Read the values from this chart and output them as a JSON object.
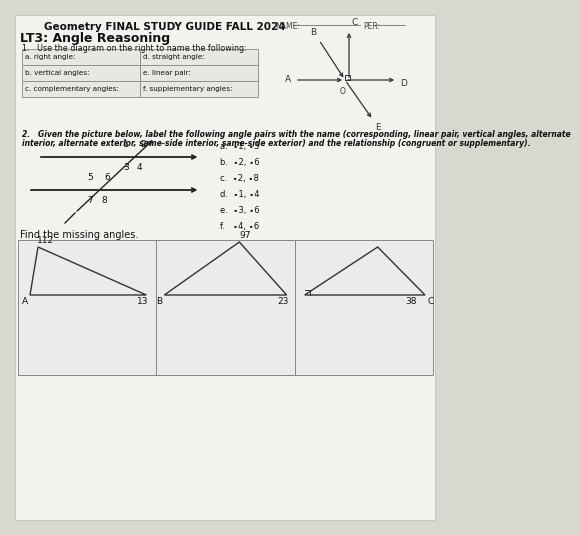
{
  "title": "Geometry FINAL STUDY GUIDE FALL 2024",
  "name_label": "NAME: ___________________",
  "per_label": "PER: _______",
  "section": "LT3: Angle Reasoning",
  "q1_header": "1.   Use the diagram on the right to name the following:",
  "table_rows": [
    [
      "a. right angle:",
      "d. straight angle:"
    ],
    [
      "b. vertical angles:",
      "e. linear pair:"
    ],
    [
      "c. complementary angles:",
      "f. supplementary angles:"
    ]
  ],
  "q2_header": "2.   Given the picture below, label the following angle pairs with the name (corresponding, linear pair, vertical angles, alternate",
  "q2_header2": "interior, alternate exterior, same-side interior, same-side exterior) and the relationship (congruent or supplementary).",
  "angle_pairs": [
    "a.  ∙1, ∙3",
    "b.  ∙2, ∙6",
    "c.  ∙2, ∙8",
    "d.  ∙1, ∙4",
    "e.  ∙3, ∙6",
    "f.   ∙4, ∙6"
  ],
  "find_missing": "Find the missing angles.",
  "bg_color": "#d8d8d0",
  "page_bg": "#f2f2ee",
  "table_bg": "#e8e8e2",
  "box_bg": "#ebebea",
  "text_color": "#111111",
  "triangle1_angle_top": "112",
  "triangle1_angle_br": "13",
  "triangle1_label_a": "A",
  "triangle2_angle_top": "97",
  "triangle2_angle_br": "23",
  "triangle2_label_b": "B",
  "triangle3_label_c": "C",
  "triangle3_angle": "38"
}
